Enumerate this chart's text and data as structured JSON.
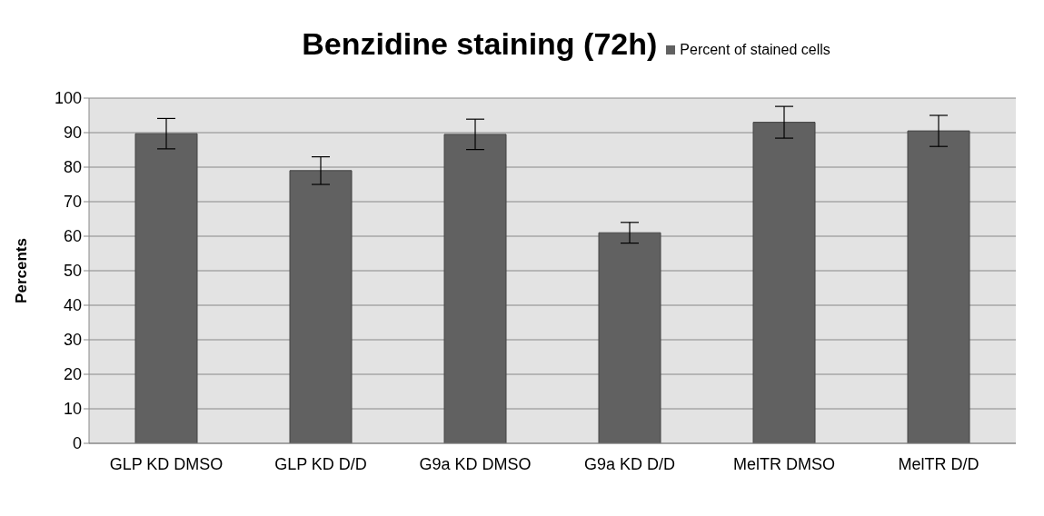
{
  "chart_data": {
    "type": "bar",
    "title": "Benzidine staining (72h)",
    "ylabel": "Percents",
    "categories": [
      "GLP KD DMSO",
      "GLP KD D/D",
      "G9a KD DMSO",
      "G9a KD D/D",
      "MelTR DMSO",
      "MelTR D/D"
    ],
    "series": [
      {
        "name": "Percent of stained cells",
        "color": "#616161",
        "values": [
          89.7,
          79,
          89.5,
          61,
          93,
          90.5
        ],
        "errors": [
          4.4,
          4,
          4.4,
          3,
          4.6,
          4.5
        ]
      }
    ],
    "ylim": [
      0,
      100
    ],
    "yticks": [
      0,
      10,
      20,
      30,
      40,
      50,
      60,
      70,
      80,
      90,
      100
    ],
    "grid": "y",
    "legend": "top right"
  }
}
